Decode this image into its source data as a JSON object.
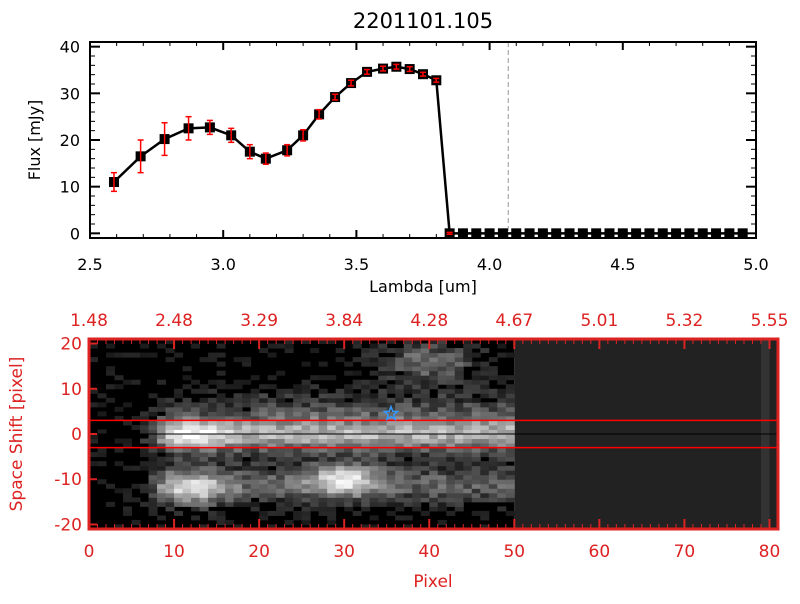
{
  "chart_data": [
    {
      "type": "line",
      "title": "2201101.105",
      "xlabel": "Lambda [um]",
      "ylabel": "Flux [mJy]",
      "xlim": [
        2.5,
        5.0
      ],
      "ylim": [
        -1,
        41
      ],
      "xticks": [
        "2.5",
        "3.0",
        "3.5",
        "4.0",
        "4.5",
        "5.0"
      ],
      "xtick_values": [
        2.5,
        3.0,
        3.5,
        4.0,
        4.5,
        5.0
      ],
      "yticks": [
        "0",
        "10",
        "20",
        "30",
        "40"
      ],
      "ytick_values": [
        0,
        10,
        20,
        30,
        40
      ],
      "vline": 4.07,
      "series": [
        {
          "name": "flux",
          "color": "#000000",
          "error_color": "#ff0000",
          "x": [
            2.59,
            2.69,
            2.78,
            2.87,
            2.95,
            3.03,
            3.1,
            3.16,
            3.24,
            3.3,
            3.36,
            3.42,
            3.48,
            3.54,
            3.6,
            3.65,
            3.7,
            3.75,
            3.8,
            3.85,
            3.9,
            3.95,
            4.0,
            4.05,
            4.1,
            4.15,
            4.2,
            4.25,
            4.3,
            4.35,
            4.4,
            4.45,
            4.5,
            4.55,
            4.6,
            4.65,
            4.7,
            4.75,
            4.8,
            4.85,
            4.9,
            4.95
          ],
          "y": [
            11,
            16.5,
            20.2,
            22.5,
            22.7,
            21,
            17.5,
            16,
            17.8,
            21,
            25.5,
            29.2,
            32.2,
            34.6,
            35.3,
            35.7,
            35.2,
            34.1,
            32.8,
            0,
            0,
            0,
            0,
            0,
            0,
            0,
            0,
            0,
            0,
            0,
            0,
            0,
            0,
            0,
            0,
            0,
            0,
            0,
            0,
            0,
            0,
            0
          ],
          "yerr": [
            2,
            3.5,
            3.5,
            2.5,
            1.5,
            1.5,
            1.5,
            1.2,
            1.2,
            1.2,
            1.0,
            0.6,
            0.6,
            0.5,
            0.5,
            0.5,
            0.5,
            0.4,
            0.4,
            0.2,
            0,
            0,
            0,
            0,
            0,
            0,
            0,
            0,
            0,
            0,
            0,
            0,
            0,
            0,
            0,
            0,
            0,
            0,
            0,
            0,
            0,
            0
          ]
        }
      ]
    },
    {
      "type": "heatmap",
      "xlabel": "Pixel",
      "ylabel": "Space Shift [pixel]",
      "xlim": [
        0,
        81
      ],
      "ylim": [
        -21,
        21
      ],
      "xticks": [
        "0",
        "10",
        "20",
        "30",
        "40",
        "50",
        "60",
        "70",
        "80"
      ],
      "xtick_values": [
        0,
        10,
        20,
        30,
        40,
        50,
        60,
        70,
        80
      ],
      "top_xticks": [
        "1.48",
        "2.48",
        "3.29",
        "3.84",
        "4.28",
        "4.67",
        "5.01",
        "5.32",
        "5.55"
      ],
      "yticks": [
        "20",
        "10",
        "0",
        "-10",
        "-20"
      ],
      "ytick_values": [
        20,
        10,
        0,
        -10,
        -20
      ],
      "extraction_lines": [
        3,
        -3
      ],
      "center_line": 0,
      "star_marker": {
        "x": 35.5,
        "y": 4.5,
        "color": "#3399ff"
      },
      "axis_color": "#dd2222",
      "data_extent_pixel": 50
    }
  ]
}
